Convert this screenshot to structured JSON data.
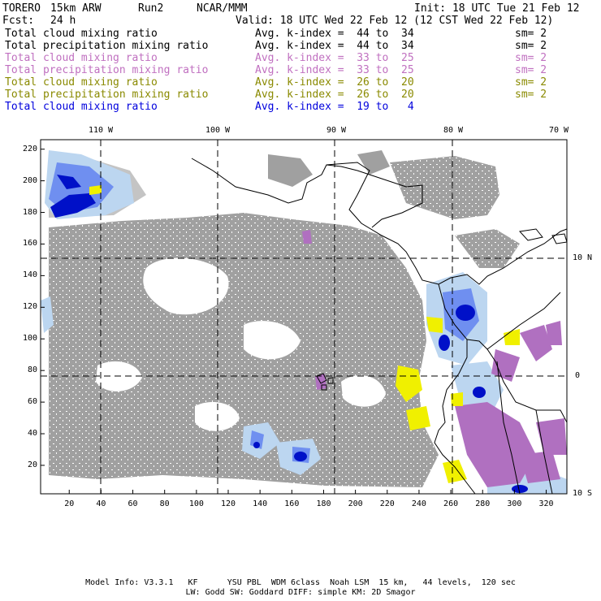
{
  "header": {
    "model": "TORERO",
    "resolution": "15km ARW",
    "run": "Run2",
    "org": "NCAR/MMM",
    "init": "Init: 18 UTC Tue 21 Feb 12",
    "fcst_label": "Fcst:",
    "fcst_value": "24 h",
    "valid": "Valid: 18 UTC Wed 22 Feb 12 (12 CST Wed 22 Feb 12)"
  },
  "legend": [
    {
      "field": "Total cloud mixing ratio",
      "kindex": "Avg. k-index =  44 to  34",
      "sm": "sm= 2",
      "color": "#000000"
    },
    {
      "field": "Total precipitation mixing ratio",
      "kindex": "Avg. k-index =  44 to  34",
      "sm": "sm= 2",
      "color": "#000000"
    },
    {
      "field": "Total cloud mixing ratio",
      "kindex": "Avg. k-index =  33 to  25",
      "sm": "sm= 2",
      "color": "#c070c0"
    },
    {
      "field": "Total precipitation mixing ratio",
      "kindex": "Avg. k-index =  33 to  25",
      "sm": "sm= 2",
      "color": "#c070c0"
    },
    {
      "field": "Total cloud mixing ratio",
      "kindex": "Avg. k-index =  26 to  20",
      "sm": "sm= 2",
      "color": "#8a8a00"
    },
    {
      "field": "Total precipitation mixing ratio",
      "kindex": "Avg. k-index =  26 to  20",
      "sm": "sm= 2",
      "color": "#8a8a00"
    },
    {
      "field": "Total cloud mixing ratio",
      "kindex": "Avg. k-index =  19 to   4",
      "sm": "",
      "color": "#0000dd"
    }
  ],
  "longitude_labels": [
    "110 W",
    "100 W",
    "90 W",
    "80 W",
    "70 W"
  ],
  "latitude_labels": [
    "10 N",
    "0",
    "10 S"
  ],
  "x_ticks": [
    "20",
    "40",
    "60",
    "80",
    "100",
    "120",
    "140",
    "160",
    "180",
    "200",
    "220",
    "240",
    "260",
    "280",
    "300",
    "320"
  ],
  "y_ticks": [
    "220",
    "200",
    "180",
    "160",
    "140",
    "120",
    "100",
    "80",
    "60",
    "40",
    "20"
  ],
  "footer": {
    "line1": "Model Info: V3.3.1   KF      YSU PBL  WDM 6class  Noah LSM  15 km,   44 levels,  120 sec",
    "line2": "LW: Godd SW: Goddard DIFF: simple KM: 2D Smagor"
  },
  "colors": {
    "gray_cloud": "#a0a0a0",
    "light_blue": "#bcd6f0",
    "mid_blue": "#6f8ff0",
    "dark_blue": "#0010c8",
    "purple": "#b070c0",
    "yellow": "#f0f000",
    "coast": "#000000"
  }
}
